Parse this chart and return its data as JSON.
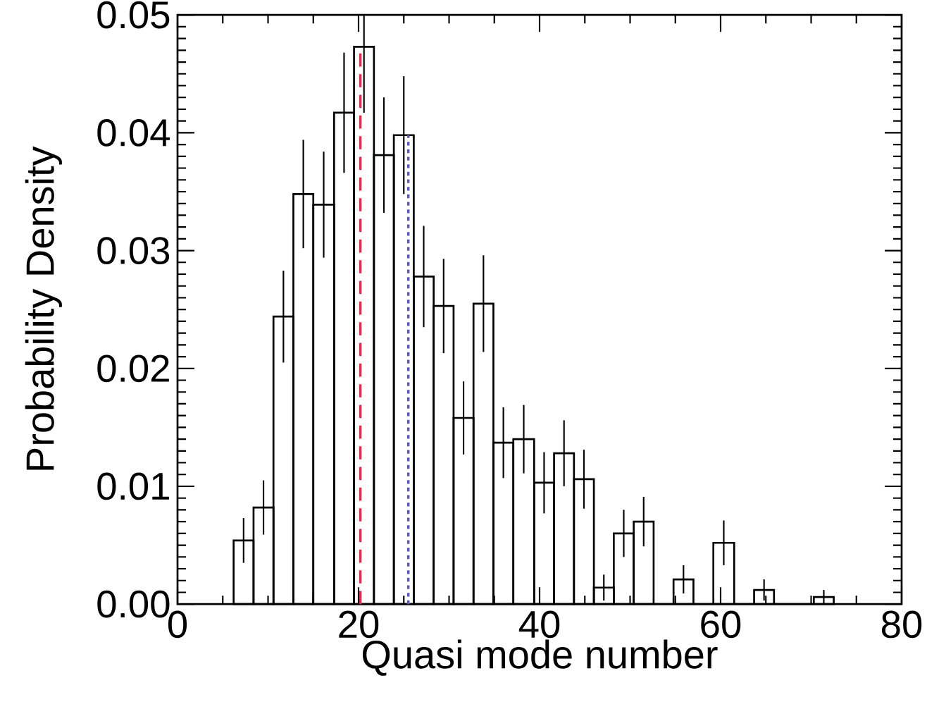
{
  "chart_data": {
    "type": "histogram",
    "xlabel": "Quasi mode number",
    "ylabel": "Probability Density",
    "color": "#000000",
    "bins": [
      6.2,
      8.4,
      10.6,
      12.8,
      15.0,
      17.3,
      19.5,
      21.7,
      23.9,
      26.1,
      28.3,
      30.5,
      32.7,
      34.9,
      37.1,
      39.4,
      41.6,
      43.8,
      46.0,
      48.2,
      50.4,
      52.6,
      54.8,
      57.0,
      59.2,
      61.5,
      63.7,
      65.9,
      70.3,
      72.5
    ],
    "values": [
      0.0054,
      0.0082,
      0.0244,
      0.0348,
      0.0339,
      0.0417,
      0.0473,
      0.0381,
      0.0398,
      0.0278,
      0.0253,
      0.0158,
      0.0255,
      0.0137,
      0.014,
      0.0103,
      0.0128,
      0.0106,
      0.0014,
      0.006,
      0.007,
      0,
      0.0021,
      0,
      0.0052,
      0,
      0.0012,
      0,
      0.0006
    ],
    "errors": [
      0.0019,
      0.0023,
      0.0039,
      0.0046,
      0.0045,
      0.0051,
      [
        0.0417,
        0.05
      ],
      0.0049,
      0.005,
      0.0043,
      0.004,
      0.0031,
      0.0041,
      0.003,
      0.0029,
      0.0026,
      0.0028,
      0.0025,
      0.0011,
      0.002,
      0.0021,
      null,
      0.0012,
      null,
      0.0019,
      null,
      0.0009,
      null,
      0.0006
    ],
    "xlim": [
      0,
      80
    ],
    "ylim": [
      0,
      0.05
    ],
    "xticks": [
      0,
      20,
      40,
      60,
      80
    ],
    "yticks": [
      {
        "value": 0,
        "label": "0.00"
      },
      0.01,
      0.02,
      0.03,
      0.04,
      0.05
    ],
    "ref_lines": [
      {
        "axis": "x",
        "value": 20.2,
        "color": "#d8324a",
        "line_style": "dashed"
      },
      {
        "axis": "x",
        "value": 25.5,
        "color": "#5a5ab0",
        "line_style": "dotted"
      }
    ]
  }
}
